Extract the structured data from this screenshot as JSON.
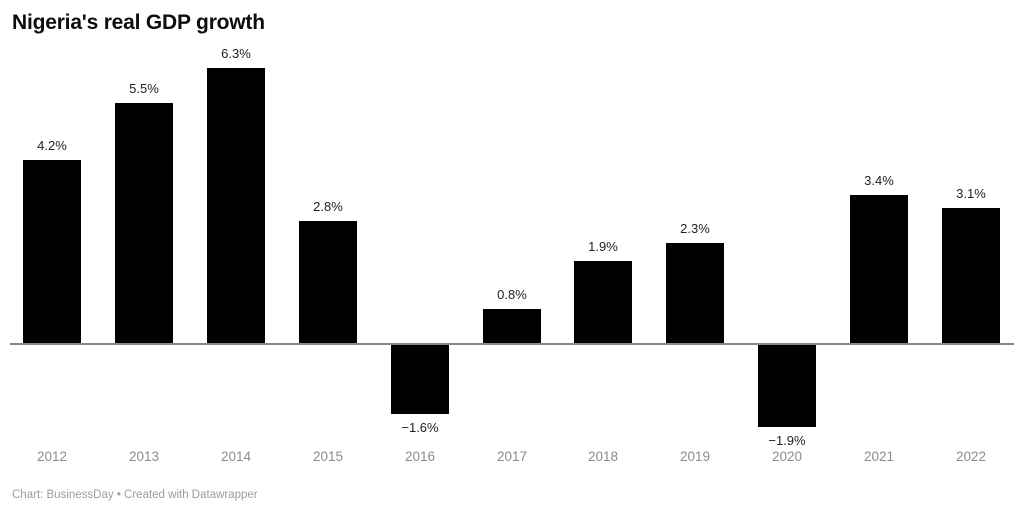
{
  "header": {
    "title": "Nigeria's real GDP growth"
  },
  "footer": {
    "text": "Chart: BusinessDay • Created with Datawrapper"
  },
  "colors": {
    "bar": "#000000",
    "title": "#0d0d0d",
    "value_label": "#222222",
    "axis_label": "#8c8c8c",
    "footer": "#9c9c9c",
    "baseline": "#878787",
    "background": "#ffffff"
  },
  "chart_data": {
    "type": "bar",
    "title": "Nigeria's real GDP growth",
    "categories": [
      "2012",
      "2013",
      "2014",
      "2015",
      "2016",
      "2017",
      "2018",
      "2019",
      "2020",
      "2021",
      "2022"
    ],
    "values": [
      4.2,
      5.5,
      6.3,
      2.8,
      -1.6,
      0.8,
      1.9,
      2.3,
      -1.9,
      3.4,
      3.1
    ],
    "value_labels": [
      "4.2%",
      "5.5%",
      "6.3%",
      "2.8%",
      "−1.6%",
      "0.8%",
      "1.9%",
      "2.3%",
      "−1.9%",
      "3.4%",
      "3.1%"
    ],
    "xlabel": "",
    "ylabel": "",
    "ylim": [
      -2.5,
      7
    ],
    "grid": false,
    "legend": false,
    "bar_color": "#000000",
    "baseline_value": 0,
    "attribution": "Chart: BusinessDay • Created with Datawrapper"
  }
}
